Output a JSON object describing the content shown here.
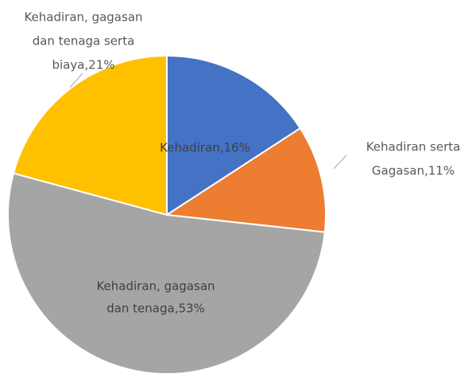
{
  "chart_data": {
    "type": "pie",
    "values": [
      16,
      11,
      53,
      21
    ],
    "value_labels": [
      [
        "Kehadiran,16%"
      ],
      [
        "Kehadiran serta",
        "Gagasan,11%"
      ],
      [
        "Kehadiran, gagasan",
        "dan tenaga,53%"
      ],
      [
        "Kehadiran, gagasan",
        "dan tenaga serta",
        "biaya,21%"
      ]
    ],
    "colors": [
      "#4472c4",
      "#ed7d31",
      "#a5a5a5",
      "#ffc000"
    ]
  }
}
